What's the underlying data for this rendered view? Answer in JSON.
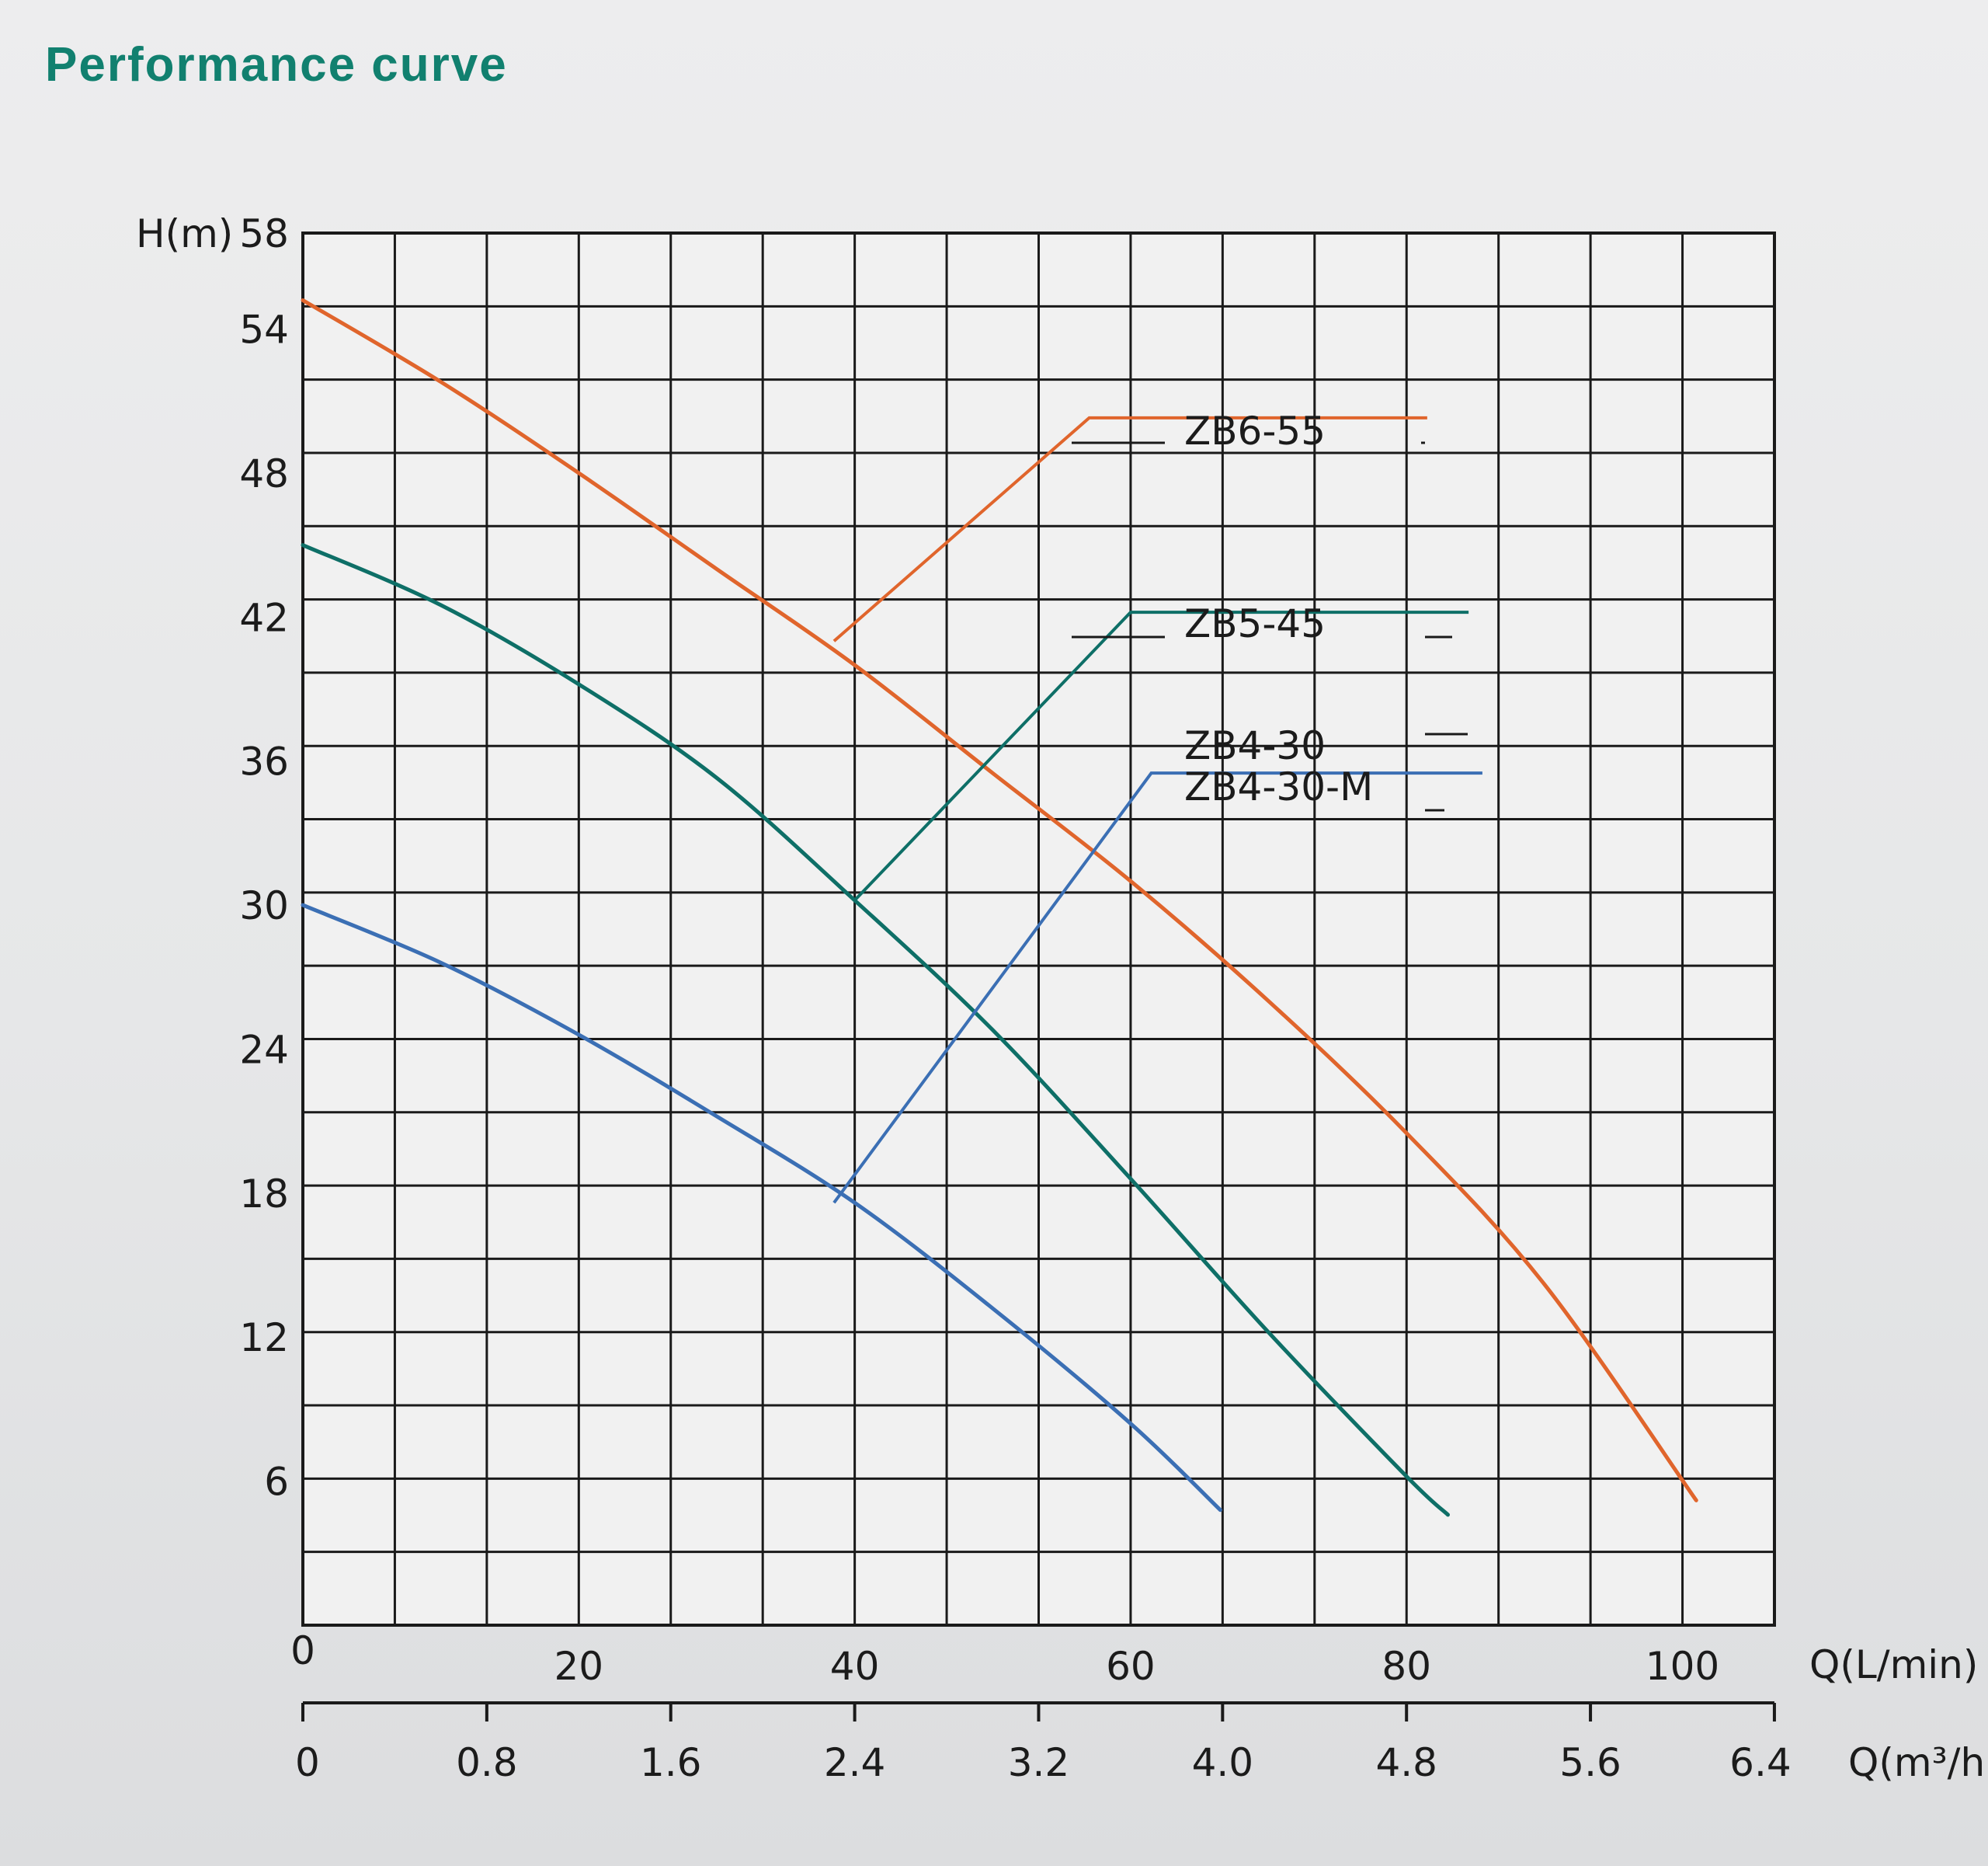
{
  "page": {
    "title": "Performance curve"
  },
  "chart_data": {
    "type": "line",
    "title": "",
    "ylabel": "H(m)",
    "xlabel": "Q(L/min)",
    "x2label": "Q(m³/h)",
    "xlim": [
      0,
      106.67
    ],
    "ylim": [
      0,
      58
    ],
    "grid": true,
    "y_ticks": [
      "6",
      "12",
      "18",
      "24",
      "30",
      "36",
      "42",
      "48",
      "54",
      "58"
    ],
    "y_tick_values": [
      6,
      12,
      18,
      24,
      30,
      36,
      42,
      48,
      54,
      58
    ],
    "x_ticks": [
      "0",
      "20",
      "40",
      "60",
      "80",
      "100"
    ],
    "x_tick_values": [
      0,
      20,
      40,
      60,
      80,
      100
    ],
    "x2_ticks": [
      "0",
      "0.8",
      "1.6",
      "2.4",
      "3.2",
      "4.0",
      "4.8",
      "5.6",
      "6.4"
    ],
    "x2_tick_values": [
      0,
      0.8,
      1.6,
      2.4,
      3.2,
      4.0,
      4.8,
      5.6,
      6.4
    ],
    "series": [
      {
        "name": "ZB6-55",
        "color": "#e0652c",
        "x": [
          0,
          10,
          20,
          30,
          40,
          50,
          60,
          70,
          80,
          90,
          101
        ],
        "y": [
          55.2,
          51.8,
          48.0,
          44.0,
          40.0,
          35.5,
          31.0,
          26.0,
          20.5,
          14.2,
          5.2
        ]
      },
      {
        "name": "ZB5-45",
        "color": "#0e6f67",
        "x": [
          0,
          10,
          20,
          30,
          40,
          50,
          60,
          70,
          80,
          83
        ],
        "y": [
          45.0,
          42.5,
          39.2,
          35.3,
          30.2,
          24.8,
          18.6,
          12.2,
          6.2,
          4.6
        ]
      },
      {
        "name": "ZB4-30",
        "color": "#3b6fb4",
        "x": [
          0,
          10,
          20,
          30,
          40,
          50,
          60,
          66.5
        ],
        "y": [
          30.0,
          27.6,
          24.6,
          21.2,
          17.6,
          13.2,
          8.4,
          4.8
        ]
      }
    ],
    "labels": [
      {
        "text": "ZB6-55",
        "color": "#e0652c",
        "leader_start": [
          38.5,
          41.0
        ],
        "bend": [
          57,
          50.3
        ],
        "line_end": [
          81.5,
          50.3
        ]
      },
      {
        "text": "ZB5-45",
        "color": "#0e6f67",
        "leader_start": [
          40,
          30.2
        ],
        "bend": [
          60,
          42.2
        ],
        "line_end": [
          84.5,
          42.2
        ]
      },
      {
        "text": "ZB4-30",
        "color": "#3b6fb4",
        "leader_start": [
          38.5,
          17.6
        ],
        "bend": [
          61.5,
          35.5
        ],
        "line_end": [
          85.5,
          35.5
        ]
      },
      {
        "text": "ZB4-30-M",
        "color": "#3b6fb4"
      }
    ]
  }
}
